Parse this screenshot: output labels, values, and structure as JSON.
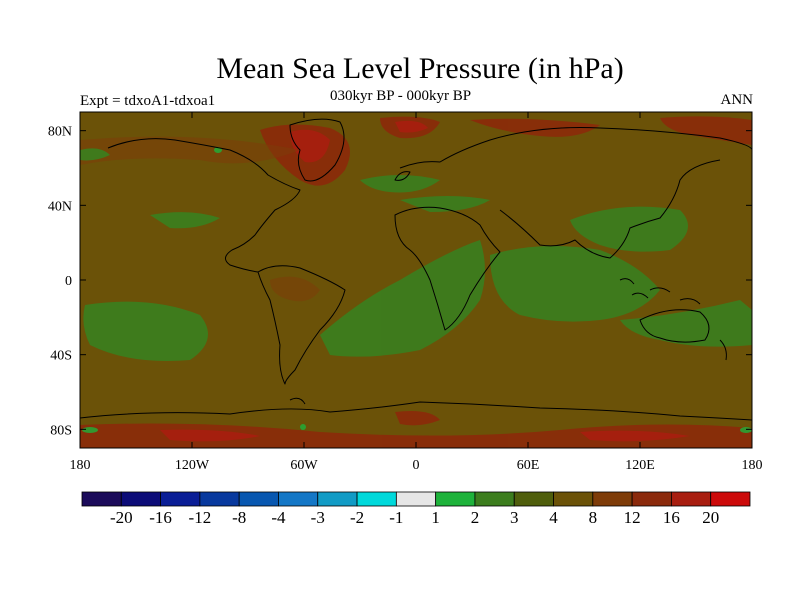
{
  "title": "Mean Sea Level Pressure (in hPa)",
  "subtitle": "030kyr BP - 000kyr BP",
  "experiment_label": "Expt = tdxoA1-tdxoa1",
  "season": "ANN",
  "map": {
    "projection": "cylindrical-equidistant",
    "lon_range": [
      -180,
      180
    ],
    "lat_range": [
      -90,
      90
    ],
    "lat_ticks": [
      {
        "value": 80,
        "label": "80N"
      },
      {
        "value": 40,
        "label": "40N"
      },
      {
        "value": 0,
        "label": "0"
      },
      {
        "value": -40,
        "label": "40S"
      },
      {
        "value": -80,
        "label": "80S"
      }
    ],
    "lon_ticks": [
      {
        "value": -180,
        "label": "180"
      },
      {
        "value": -120,
        "label": "120W"
      },
      {
        "value": -60,
        "label": "60W"
      },
      {
        "value": 0,
        "label": "0"
      },
      {
        "value": 60,
        "label": "60E"
      },
      {
        "value": 120,
        "label": "120E"
      },
      {
        "value": 180,
        "label": "180"
      }
    ],
    "background_color": "#6B5208"
  },
  "colorbar": {
    "colors": [
      "#1B0B5A",
      "#0C0C78",
      "#0A1E96",
      "#08399E",
      "#0857B0",
      "#1477C6",
      "#119BC5",
      "#00D9DB",
      "#E6E6E6",
      "#1EB23B",
      "#3C7D1E",
      "#4F5E0C",
      "#6B5208",
      "#7E3C09",
      "#8B2A0C",
      "#A81E10",
      "#CC0A0A"
    ],
    "labels": [
      "-20",
      "-16",
      "-12",
      "-8",
      "-4",
      "-3",
      "-2",
      "-1",
      "1",
      "2",
      "3",
      "4",
      "8",
      "12",
      "16",
      "20"
    ]
  }
}
